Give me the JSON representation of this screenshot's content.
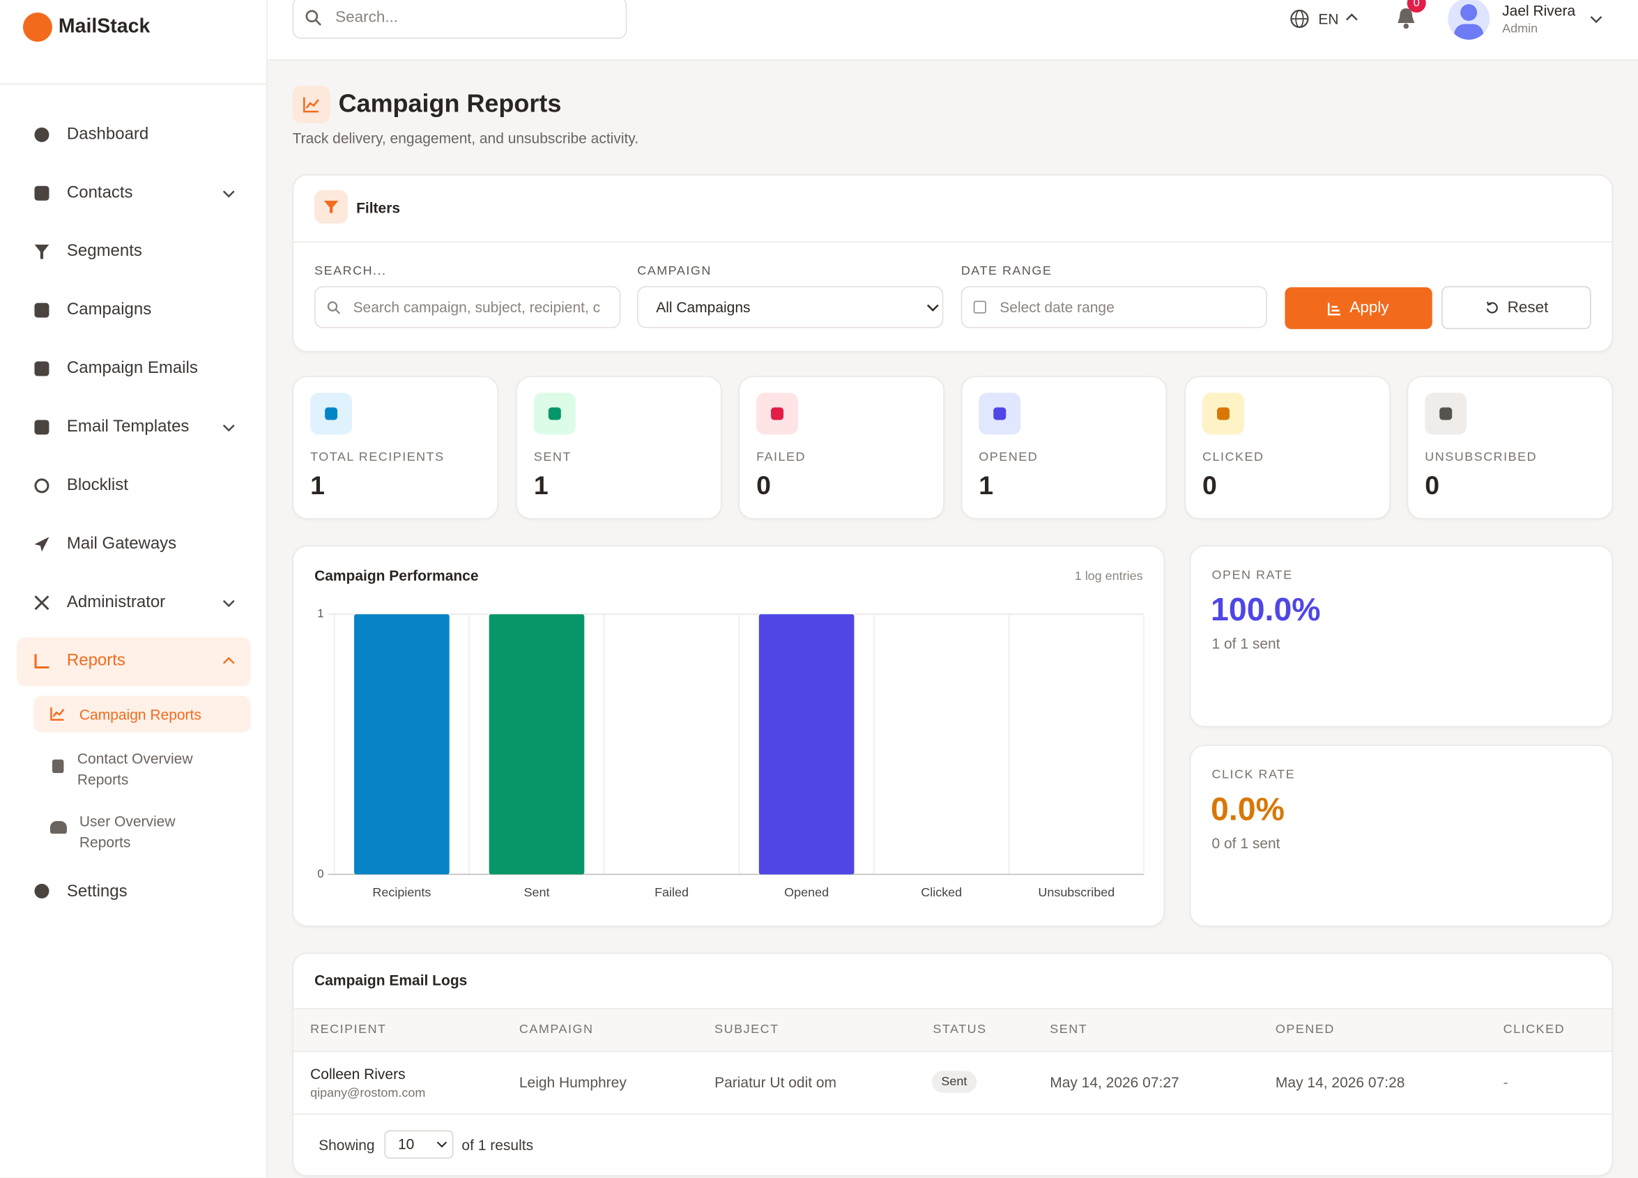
{
  "sidebar": {
    "brand": "MailStack",
    "nav": [
      "Dashboard",
      "Contacts",
      "Segments",
      "Campaigns",
      "Campaign Emails",
      "Email Templates",
      "Blocklist",
      "Mail Gateways",
      "Administrator",
      "Reports",
      "Settings"
    ],
    "sub": [
      "Campaign Reports",
      "Contact Overview Reports",
      "User Overview Reports"
    ]
  },
  "header": {
    "search": "Search...",
    "lang": "EN",
    "badge": "0",
    "user": "Jael Rivera",
    "role": "Admin"
  },
  "page": {
    "title": "Campaign Reports",
    "subtitle": "Track delivery, engagement, and unsubscribe activity."
  },
  "filters": {
    "title": "Filters",
    "search_label": "SEARCH...",
    "search_placeholder": "Search campaign, subject, recipient, c",
    "campaign_label": "CAMPAIGN",
    "campaign_value": "All Campaigns",
    "date_label": "DATE RANGE",
    "date_placeholder": "Select date range",
    "apply": "Apply",
    "reset": "Reset"
  },
  "stats": [
    {
      "label": "TOTAL RECIPIENTS",
      "value": 1
    },
    {
      "label": "SENT",
      "value": 1
    },
    {
      "label": "FAILED",
      "value": 0
    },
    {
      "label": "OPENED",
      "value": 1
    },
    {
      "label": "CLICKED",
      "value": 0
    },
    {
      "label": "UNSUBSCRIBED",
      "value": 0
    }
  ],
  "chart_data": {
    "type": "bar",
    "title": "Campaign Performance",
    "note": "1 log entries",
    "categories": [
      "Recipients",
      "Sent",
      "Failed",
      "Opened",
      "Clicked",
      "Unsubscribed"
    ],
    "values": [
      1,
      1,
      0,
      1,
      0,
      0
    ],
    "colors": [
      "#0684c6",
      "#079669",
      "#e11d48",
      "#4f46e5",
      "#d97706",
      "#57534e"
    ],
    "ylim": [
      0,
      1
    ],
    "yticks": [
      0,
      1
    ],
    "grid": true
  },
  "rates": [
    {
      "label": "OPEN RATE",
      "value": "100.0%",
      "detail": "1 of 1 sent"
    },
    {
      "label": "CLICK RATE",
      "value": "0.0%",
      "detail": "0 of 1 sent"
    }
  ],
  "logs": {
    "title": "Campaign Email Logs",
    "columns": [
      "RECIPIENT",
      "CAMPAIGN",
      "SUBJECT",
      "STATUS",
      "SENT",
      "OPENED",
      "CLICKED"
    ],
    "rows": [
      {
        "name": "Colleen Rivers",
        "email": "qipany@rostom.com",
        "campaign": "Leigh Humphrey",
        "subject": "Pariatur Ut odit om",
        "status": "Sent",
        "sent": "May 14, 2026 07:27",
        "opened": "May 14, 2026 07:28",
        "clicked": "-"
      }
    ],
    "showing": "Showing",
    "per_page": "10",
    "results": "of 1 results"
  }
}
